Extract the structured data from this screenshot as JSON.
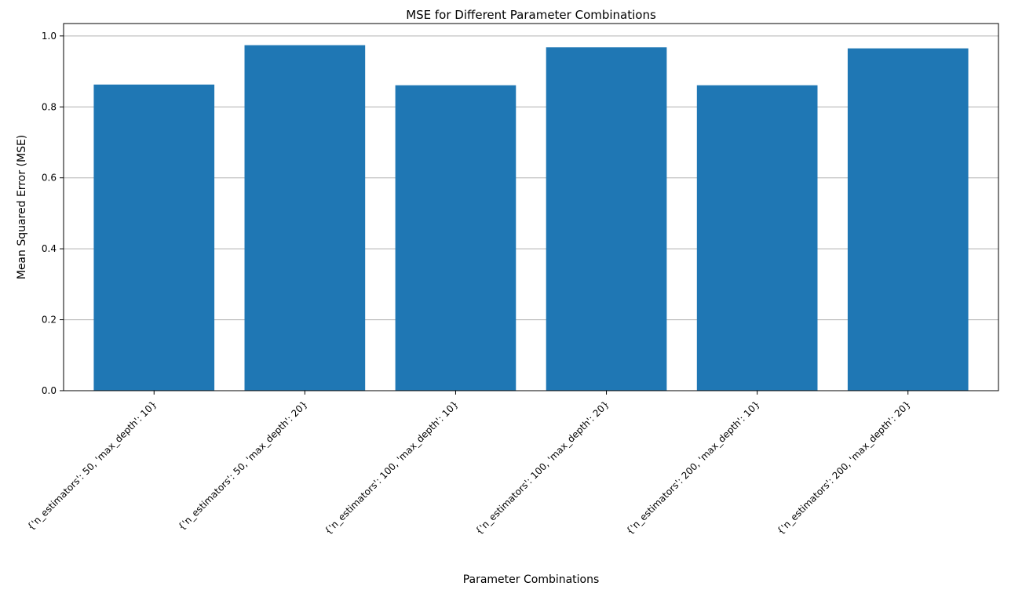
{
  "chart_data": {
    "type": "bar",
    "title": "MSE for Different Parameter Combinations",
    "xlabel": "Parameter Combinations",
    "ylabel": "Mean Squared Error (MSE)",
    "categories": [
      "{'n_estimators': 50, 'max_depth': 10}",
      "{'n_estimators': 50, 'max_depth': 20}",
      "{'n_estimators': 100, 'max_depth': 10}",
      "{'n_estimators': 100, 'max_depth': 20}",
      "{'n_estimators': 200, 'max_depth': 10}",
      "{'n_estimators': 200, 'max_depth': 20}"
    ],
    "values": [
      0.863,
      0.974,
      0.861,
      0.968,
      0.861,
      0.965
    ],
    "ylim": [
      0,
      1.0
    ],
    "yticks": [
      0.0,
      0.2,
      0.4,
      0.6,
      0.8,
      1.0
    ],
    "ytick_labels": [
      "0.0",
      "0.2",
      "0.4",
      "0.6",
      "0.8",
      "1.0"
    ],
    "grid": "y",
    "bar_color": "#1f77b4",
    "grid_color": "#b0b0b0"
  }
}
